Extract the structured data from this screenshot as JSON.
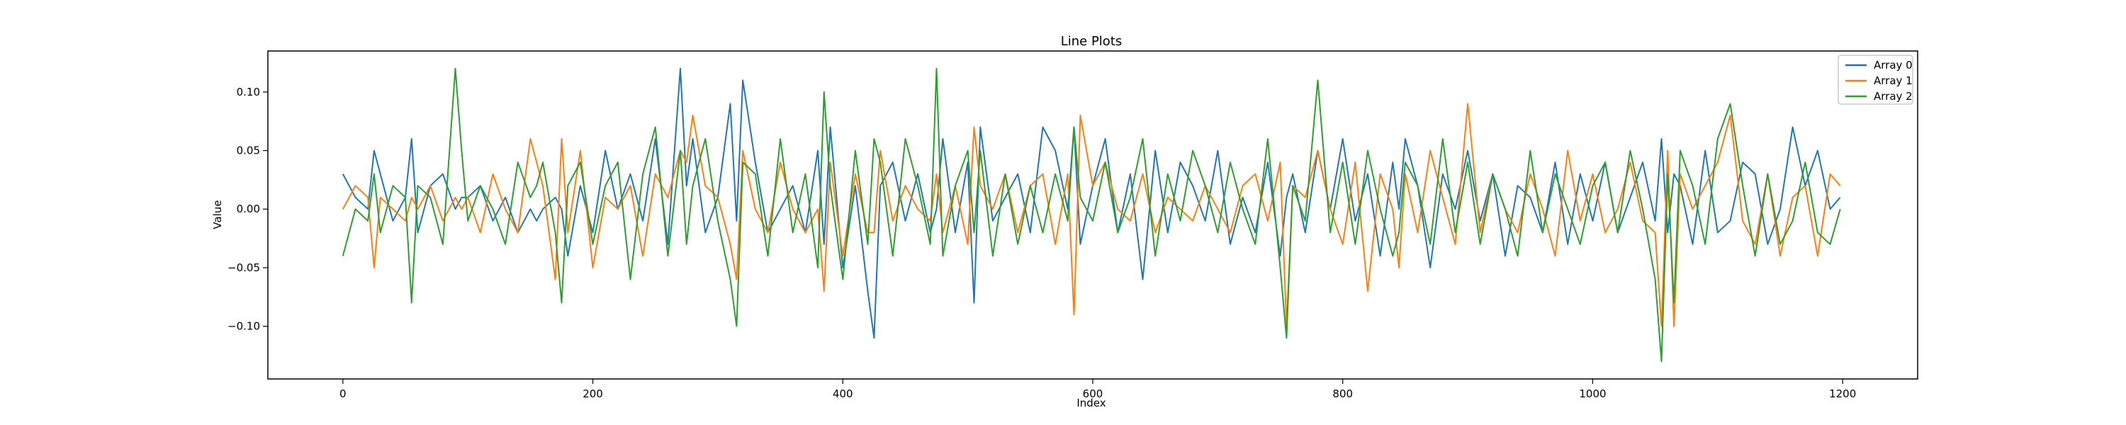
{
  "chart_data": {
    "type": "line",
    "title": "Line Plots",
    "xlabel": "Index",
    "ylabel": "Value",
    "xlim": [
      -60,
      1260
    ],
    "ylim": [
      -0.145,
      0.135
    ],
    "xticks": [
      0,
      200,
      400,
      600,
      800,
      1000,
      1200
    ],
    "xtick_labels": [
      "0",
      "200",
      "400",
      "600",
      "800",
      "1000",
      "1200"
    ],
    "yticks": [
      -0.1,
      -0.05,
      0.0,
      0.05,
      0.1
    ],
    "ytick_labels": [
      "−0.10",
      "−0.05",
      "0.00",
      "0.05",
      "0.10"
    ],
    "grid": false,
    "legend_position": "top-right",
    "x": [
      0,
      10,
      20,
      25,
      30,
      40,
      50,
      55,
      60,
      70,
      80,
      90,
      95,
      100,
      110,
      120,
      130,
      140,
      150,
      155,
      160,
      170,
      175,
      180,
      190,
      200,
      210,
      220,
      230,
      240,
      250,
      260,
      270,
      275,
      280,
      290,
      300,
      310,
      315,
      320,
      330,
      340,
      350,
      360,
      370,
      380,
      385,
      390,
      400,
      410,
      420,
      425,
      430,
      440,
      450,
      460,
      470,
      475,
      480,
      490,
      500,
      505,
      510,
      520,
      530,
      540,
      550,
      560,
      570,
      580,
      585,
      590,
      600,
      610,
      620,
      630,
      640,
      650,
      660,
      670,
      680,
      690,
      700,
      710,
      720,
      730,
      740,
      750,
      755,
      760,
      770,
      780,
      790,
      800,
      810,
      820,
      830,
      840,
      845,
      850,
      860,
      870,
      880,
      890,
      900,
      910,
      920,
      930,
      940,
      950,
      960,
      970,
      980,
      990,
      1000,
      1010,
      1020,
      1030,
      1040,
      1050,
      1055,
      1060,
      1065,
      1070,
      1080,
      1090,
      1100,
      1110,
      1120,
      1130,
      1140,
      1150,
      1160,
      1170,
      1180,
      1190,
      1198
    ],
    "series": [
      {
        "name": "Array 0",
        "color": "#1f77b4",
        "values": [
          0.03,
          0.01,
          0.0,
          0.05,
          0.03,
          -0.01,
          0.01,
          0.06,
          -0.02,
          0.02,
          0.03,
          0.0,
          0.01,
          0.01,
          0.02,
          -0.01,
          0.01,
          -0.02,
          0.0,
          -0.01,
          0.0,
          0.01,
          0.0,
          -0.04,
          0.02,
          -0.02,
          0.05,
          0.0,
          0.03,
          -0.01,
          0.06,
          -0.03,
          0.12,
          0.02,
          0.06,
          -0.02,
          0.01,
          0.09,
          -0.01,
          0.11,
          0.04,
          -0.02,
          0.0,
          0.02,
          -0.02,
          0.05,
          -0.03,
          0.07,
          -0.05,
          0.02,
          -0.07,
          -0.11,
          0.02,
          0.04,
          -0.01,
          0.03,
          -0.02,
          0.0,
          0.06,
          -0.02,
          0.04,
          -0.08,
          0.07,
          -0.01,
          0.01,
          0.03,
          -0.02,
          0.07,
          0.05,
          0.0,
          0.07,
          -0.03,
          0.02,
          0.06,
          -0.02,
          0.03,
          -0.06,
          0.05,
          -0.02,
          0.04,
          0.02,
          -0.01,
          0.05,
          -0.03,
          0.01,
          -0.02,
          0.04,
          -0.04,
          0.01,
          0.03,
          -0.02,
          0.05,
          0.0,
          0.06,
          -0.01,
          0.03,
          -0.04,
          0.04,
          0.0,
          0.06,
          0.02,
          -0.05,
          0.03,
          0.0,
          0.05,
          -0.01,
          0.03,
          -0.04,
          0.02,
          0.01,
          -0.02,
          0.04,
          -0.03,
          0.03,
          -0.01,
          0.04,
          -0.02,
          0.01,
          0.04,
          -0.01,
          0.06,
          -0.02,
          0.03,
          0.02,
          -0.03,
          0.05,
          -0.02,
          -0.01,
          0.04,
          0.03,
          -0.03,
          0.0,
          0.07,
          0.02,
          0.05,
          0.0,
          0.01
        ]
      },
      {
        "name": "Array 1",
        "color": "#ff7f0e",
        "values": [
          0.0,
          0.02,
          0.01,
          -0.05,
          0.01,
          0.0,
          -0.01,
          0.01,
          0.0,
          0.02,
          -0.01,
          0.01,
          0.0,
          0.01,
          -0.02,
          0.03,
          0.0,
          -0.02,
          0.06,
          0.04,
          0.02,
          -0.06,
          0.06,
          -0.02,
          0.05,
          -0.05,
          0.01,
          0.0,
          0.02,
          -0.04,
          0.03,
          0.01,
          0.05,
          0.04,
          0.08,
          0.02,
          0.01,
          -0.03,
          -0.06,
          0.05,
          0.0,
          -0.02,
          0.04,
          0.0,
          -0.02,
          0.0,
          -0.07,
          0.04,
          -0.04,
          0.03,
          -0.02,
          -0.02,
          0.05,
          -0.01,
          0.02,
          0.0,
          -0.01,
          0.03,
          -0.02,
          0.02,
          -0.03,
          0.07,
          0.02,
          0.0,
          0.03,
          -0.02,
          0.02,
          0.03,
          -0.03,
          0.03,
          -0.09,
          0.08,
          0.02,
          0.04,
          0.0,
          -0.01,
          0.03,
          -0.02,
          0.01,
          0.0,
          -0.01,
          0.02,
          0.0,
          -0.02,
          0.02,
          0.03,
          -0.01,
          0.04,
          -0.1,
          0.02,
          0.01,
          0.05,
          0.0,
          -0.03,
          0.04,
          -0.07,
          0.03,
          0.0,
          -0.05,
          0.03,
          -0.02,
          0.05,
          0.01,
          -0.03,
          0.09,
          -0.02,
          0.03,
          0.0,
          -0.02,
          0.03,
          0.0,
          -0.04,
          0.05,
          -0.01,
          0.03,
          -0.02,
          0.0,
          0.04,
          -0.01,
          -0.02,
          -0.1,
          0.05,
          -0.1,
          0.03,
          0.0,
          0.02,
          0.04,
          0.08,
          -0.01,
          -0.03,
          0.03,
          -0.04,
          0.01,
          0.02,
          -0.04,
          0.03,
          0.02
        ]
      },
      {
        "name": "Array 2",
        "color": "#2ca02c",
        "values": [
          -0.04,
          0.0,
          -0.01,
          0.03,
          -0.02,
          0.02,
          0.01,
          -0.08,
          0.02,
          0.01,
          -0.03,
          0.12,
          0.05,
          -0.01,
          0.02,
          0.0,
          -0.03,
          0.04,
          0.01,
          0.02,
          0.04,
          -0.02,
          -0.08,
          0.02,
          0.04,
          -0.03,
          0.02,
          0.04,
          -0.06,
          0.03,
          0.07,
          -0.04,
          0.05,
          -0.03,
          0.02,
          0.06,
          -0.01,
          -0.06,
          -0.1,
          0.04,
          0.03,
          -0.04,
          0.06,
          -0.02,
          0.03,
          -0.05,
          0.1,
          0.02,
          -0.06,
          0.05,
          -0.03,
          0.06,
          0.04,
          -0.04,
          0.06,
          0.02,
          -0.03,
          0.12,
          -0.04,
          0.02,
          0.05,
          -0.02,
          0.05,
          -0.04,
          0.03,
          -0.03,
          0.02,
          -0.02,
          0.03,
          -0.01,
          0.07,
          0.01,
          -0.01,
          0.04,
          -0.02,
          0.01,
          0.06,
          -0.04,
          0.03,
          -0.01,
          0.05,
          0.02,
          -0.02,
          0.04,
          0.0,
          -0.03,
          0.06,
          -0.05,
          -0.11,
          0.02,
          -0.01,
          0.11,
          -0.02,
          0.04,
          -0.03,
          0.05,
          0.0,
          -0.04,
          -0.02,
          0.04,
          0.02,
          -0.03,
          0.06,
          -0.02,
          0.04,
          -0.03,
          0.03,
          0.0,
          -0.04,
          0.05,
          -0.02,
          0.03,
          0.0,
          -0.03,
          0.02,
          0.04,
          -0.02,
          0.05,
          0.0,
          -0.06,
          -0.13,
          0.03,
          -0.08,
          0.05,
          0.02,
          -0.03,
          0.06,
          0.09,
          0.02,
          -0.04,
          0.03,
          -0.03,
          -0.01,
          0.04,
          -0.02,
          -0.03,
          0.0
        ]
      }
    ]
  }
}
